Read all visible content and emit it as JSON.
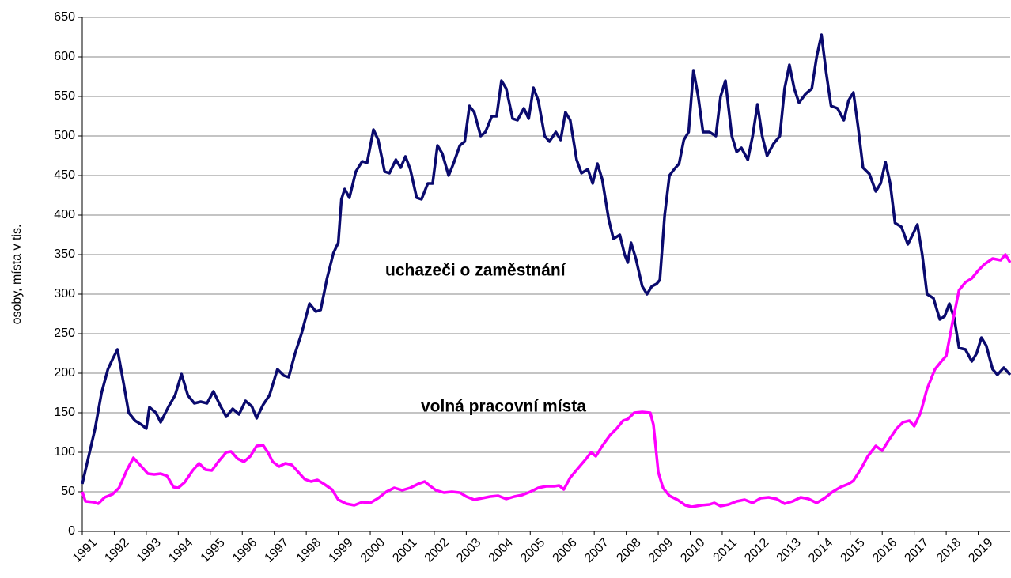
{
  "chart_data": {
    "type": "line",
    "ylabel": "osoby, místa v tis.",
    "xlim": [
      1991,
      2020
    ],
    "ylim": [
      0,
      650
    ],
    "xticks": [
      1991,
      1992,
      1993,
      1994,
      1995,
      1996,
      1997,
      1998,
      1999,
      2000,
      2001,
      2002,
      2003,
      2004,
      2005,
      2006,
      2007,
      2008,
      2009,
      2010,
      2011,
      2012,
      2013,
      2014,
      2015,
      2016,
      2017,
      2018,
      2019
    ],
    "yticks": [
      0,
      50,
      100,
      150,
      200,
      250,
      300,
      350,
      400,
      450,
      500,
      550,
      600,
      650
    ],
    "grid": true,
    "annotations": [
      {
        "text": "uchazeči o zaměstnání",
        "series": 0
      },
      {
        "text": "volná pracovní místa",
        "series": 1
      }
    ],
    "series": [
      {
        "color": "#0a0a6e",
        "x": [
          1991.0,
          1991.2,
          1991.4,
          1991.6,
          1991.8,
          1991.95,
          1992.1,
          1992.3,
          1992.45,
          1992.65,
          1992.85,
          1993.0,
          1993.1,
          1993.3,
          1993.45,
          1993.7,
          1993.9,
          1994.1,
          1994.3,
          1994.5,
          1994.7,
          1994.9,
          1995.1,
          1995.3,
          1995.5,
          1995.7,
          1995.9,
          1996.1,
          1996.3,
          1996.45,
          1996.65,
          1996.85,
          1997.1,
          1997.3,
          1997.45,
          1997.65,
          1997.85,
          1998.1,
          1998.3,
          1998.45,
          1998.65,
          1998.85,
          1999.0,
          1999.1,
          1999.2,
          1999.35,
          1999.55,
          1999.75,
          1999.9,
          2000.1,
          2000.25,
          2000.45,
          2000.6,
          2000.8,
          2000.95,
          2001.1,
          2001.25,
          2001.45,
          2001.6,
          2001.8,
          2001.95,
          2002.1,
          2002.25,
          2002.45,
          2002.6,
          2002.8,
          2002.95,
          2003.1,
          2003.25,
          2003.45,
          2003.6,
          2003.8,
          2003.95,
          2004.1,
          2004.25,
          2004.45,
          2004.6,
          2004.8,
          2004.95,
          2005.1,
          2005.25,
          2005.45,
          2005.6,
          2005.8,
          2005.95,
          2006.1,
          2006.25,
          2006.45,
          2006.6,
          2006.8,
          2006.95,
          2007.1,
          2007.25,
          2007.45,
          2007.6,
          2007.8,
          2007.95,
          2008.05,
          2008.15,
          2008.3,
          2008.5,
          2008.65,
          2008.8,
          2008.95,
          2009.05,
          2009.2,
          2009.35,
          2009.5,
          2009.65,
          2009.8,
          2009.95,
          2010.1,
          2010.25,
          2010.4,
          2010.6,
          2010.8,
          2010.95,
          2011.1,
          2011.3,
          2011.45,
          2011.6,
          2011.8,
          2011.95,
          2012.1,
          2012.25,
          2012.4,
          2012.6,
          2012.8,
          2012.95,
          2013.1,
          2013.25,
          2013.4,
          2013.6,
          2013.8,
          2013.95,
          2014.1,
          2014.25,
          2014.4,
          2014.6,
          2014.8,
          2014.95,
          2015.1,
          2015.25,
          2015.4,
          2015.6,
          2015.8,
          2015.95,
          2016.1,
          2016.25,
          2016.4,
          2016.6,
          2016.8,
          2016.95,
          2017.1,
          2017.25,
          2017.4,
          2017.6,
          2017.8,
          2017.95,
          2018.1,
          2018.25,
          2018.4,
          2018.6,
          2018.8,
          2018.95,
          2019.1,
          2019.25,
          2019.45,
          2019.6,
          2019.8,
          2020.0
        ],
        "values": [
          60,
          95,
          130,
          175,
          205,
          218,
          230,
          185,
          150,
          140,
          135,
          130,
          157,
          150,
          138,
          158,
          172,
          199,
          172,
          162,
          164,
          162,
          177,
          160,
          145,
          155,
          148,
          165,
          158,
          143,
          160,
          172,
          205,
          197,
          195,
          225,
          250,
          288,
          278,
          280,
          320,
          352,
          365,
          420,
          433,
          422,
          455,
          468,
          466,
          508,
          495,
          455,
          453,
          470,
          460,
          474,
          458,
          422,
          420,
          440,
          440,
          488,
          478,
          450,
          465,
          488,
          493,
          538,
          530,
          500,
          505,
          525,
          525,
          570,
          560,
          522,
          520,
          535,
          522,
          561,
          545,
          500,
          493,
          505,
          495,
          530,
          520,
          470,
          453,
          458,
          440,
          465,
          445,
          395,
          370,
          375,
          350,
          340,
          365,
          345,
          310,
          300,
          310,
          313,
          318,
          400,
          450,
          458,
          465,
          495,
          505,
          583,
          550,
          505,
          505,
          500,
          550,
          570,
          500,
          480,
          485,
          470,
          500,
          540,
          500,
          475,
          490,
          500,
          560,
          590,
          560,
          542,
          553,
          560,
          600,
          628,
          580,
          538,
          535,
          520,
          545,
          555,
          510,
          460,
          452,
          430,
          440,
          467,
          440,
          390,
          385,
          363,
          375,
          388,
          350,
          300,
          295,
          268,
          272,
          288,
          270,
          232,
          230,
          215,
          225,
          245,
          235,
          205,
          198,
          207,
          198
        ]
      },
      {
        "color": "#ff00ff",
        "x": [
          1991.0,
          1991.1,
          1991.35,
          1991.5,
          1991.7,
          1991.95,
          1992.15,
          1992.4,
          1992.6,
          1992.85,
          1993.05,
          1993.25,
          1993.45,
          1993.65,
          1993.85,
          1994.0,
          1994.2,
          1994.45,
          1994.65,
          1994.85,
          1995.05,
          1995.25,
          1995.5,
          1995.65,
          1995.85,
          1996.05,
          1996.25,
          1996.45,
          1996.65,
          1996.8,
          1996.95,
          1997.15,
          1997.35,
          1997.55,
          1997.75,
          1997.95,
          1998.15,
          1998.35,
          1998.55,
          1998.8,
          1999.0,
          1999.25,
          1999.5,
          1999.75,
          2000.0,
          2000.25,
          2000.5,
          2000.75,
          2001.0,
          2001.25,
          2001.5,
          2001.7,
          2001.85,
          2002.05,
          2002.3,
          2002.55,
          2002.8,
          2003.0,
          2003.25,
          2003.5,
          2003.75,
          2004.0,
          2004.25,
          2004.5,
          2004.75,
          2005.0,
          2005.25,
          2005.5,
          2005.75,
          2005.9,
          2006.05,
          2006.25,
          2006.5,
          2006.75,
          2006.9,
          2007.05,
          2007.25,
          2007.5,
          2007.7,
          2007.9,
          2008.05,
          2008.25,
          2008.5,
          2008.75,
          2008.85,
          2009.0,
          2009.15,
          2009.35,
          2009.6,
          2009.85,
          2010.05,
          2010.35,
          2010.6,
          2010.75,
          2010.95,
          2011.2,
          2011.45,
          2011.7,
          2011.95,
          2012.2,
          2012.45,
          2012.7,
          2012.95,
          2013.2,
          2013.45,
          2013.7,
          2013.95,
          2014.2,
          2014.45,
          2014.7,
          2014.95,
          2015.1,
          2015.35,
          2015.55,
          2015.8,
          2016.0,
          2016.2,
          2016.45,
          2016.65,
          2016.85,
          2017.0,
          2017.2,
          2017.4,
          2017.65,
          2017.85,
          2018.0,
          2018.2,
          2018.4,
          2018.6,
          2018.8,
          2019.0,
          2019.2,
          2019.45,
          2019.7,
          2019.85,
          2020.0
        ],
        "values": [
          50,
          38,
          37,
          35,
          43,
          47,
          55,
          78,
          93,
          82,
          73,
          72,
          73,
          70,
          56,
          55,
          62,
          77,
          86,
          78,
          77,
          88,
          100,
          101,
          92,
          88,
          95,
          108,
          109,
          100,
          88,
          82,
          86,
          84,
          75,
          66,
          63,
          65,
          60,
          53,
          40,
          35,
          33,
          37,
          36,
          42,
          50,
          55,
          52,
          55,
          60,
          63,
          58,
          52,
          49,
          50,
          49,
          44,
          40,
          42,
          44,
          45,
          41,
          44,
          46,
          50,
          55,
          57,
          57,
          58,
          53,
          68,
          80,
          92,
          100,
          95,
          108,
          122,
          130,
          140,
          142,
          150,
          151,
          150,
          135,
          75,
          55,
          45,
          40,
          33,
          31,
          33,
          34,
          36,
          32,
          34,
          38,
          40,
          36,
          42,
          43,
          41,
          35,
          38,
          43,
          41,
          36,
          42,
          50,
          56,
          60,
          64,
          80,
          95,
          108,
          102,
          115,
          130,
          138,
          140,
          133,
          150,
          180,
          205,
          215,
          222,
          265,
          305,
          315,
          320,
          330,
          338,
          345,
          343,
          350,
          340
        ]
      }
    ]
  }
}
